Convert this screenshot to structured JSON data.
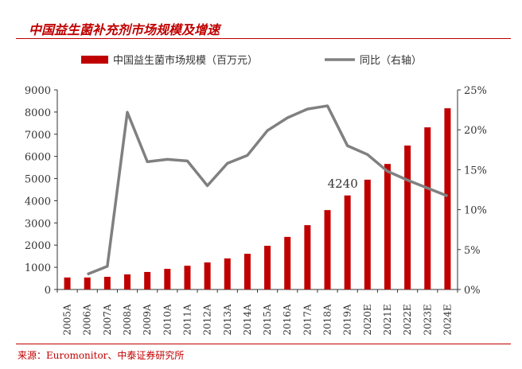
{
  "title": "中国益生菌补充剂市场规模及增速",
  "source": "来源：Euromonitor、中泰证券研究所",
  "colors": {
    "bar": "#c00000",
    "line": "#808080",
    "title": "#c00000"
  },
  "chart_data": {
    "type": "bar+line",
    "categories": [
      "2005A",
      "2006A",
      "2007A",
      "2008A",
      "2009A",
      "2010A",
      "2011A",
      "2012A",
      "2013A",
      "2014A",
      "2015A",
      "2016A",
      "2017A",
      "2018A",
      "2019A",
      "2020E",
      "2021E",
      "2022E",
      "2023E",
      "2024E"
    ],
    "series": [
      {
        "name": "中国益生菌市场规模（百万元）",
        "type": "bar",
        "axis": "left",
        "values": [
          540,
          540,
          570,
          680,
          790,
          930,
          1070,
          1220,
          1400,
          1610,
          1970,
          2370,
          2900,
          3580,
          4240,
          4950,
          5660,
          6490,
          7310,
          8170
        ]
      },
      {
        "name": "同比（右轴）",
        "type": "line",
        "axis": "right",
        "values": [
          null,
          1.9,
          2.9,
          22.2,
          16.0,
          16.3,
          16.1,
          13.0,
          15.8,
          16.8,
          19.9,
          21.5,
          22.6,
          23.0,
          18.0,
          16.9,
          14.8,
          13.7,
          12.7,
          11.7
        ]
      }
    ],
    "annotations": [
      {
        "category": "2019A",
        "text": "4240"
      }
    ],
    "ylim": [
      0,
      9000
    ],
    "yticks": [
      "0",
      "1000",
      "2000",
      "3000",
      "4000",
      "5000",
      "6000",
      "7000",
      "8000",
      "9000"
    ],
    "y2lim": [
      0,
      25
    ],
    "y2ticks": [
      "0%",
      "5%",
      "10%",
      "15%",
      "20%",
      "25%"
    ],
    "legend": "top",
    "grid": false
  }
}
